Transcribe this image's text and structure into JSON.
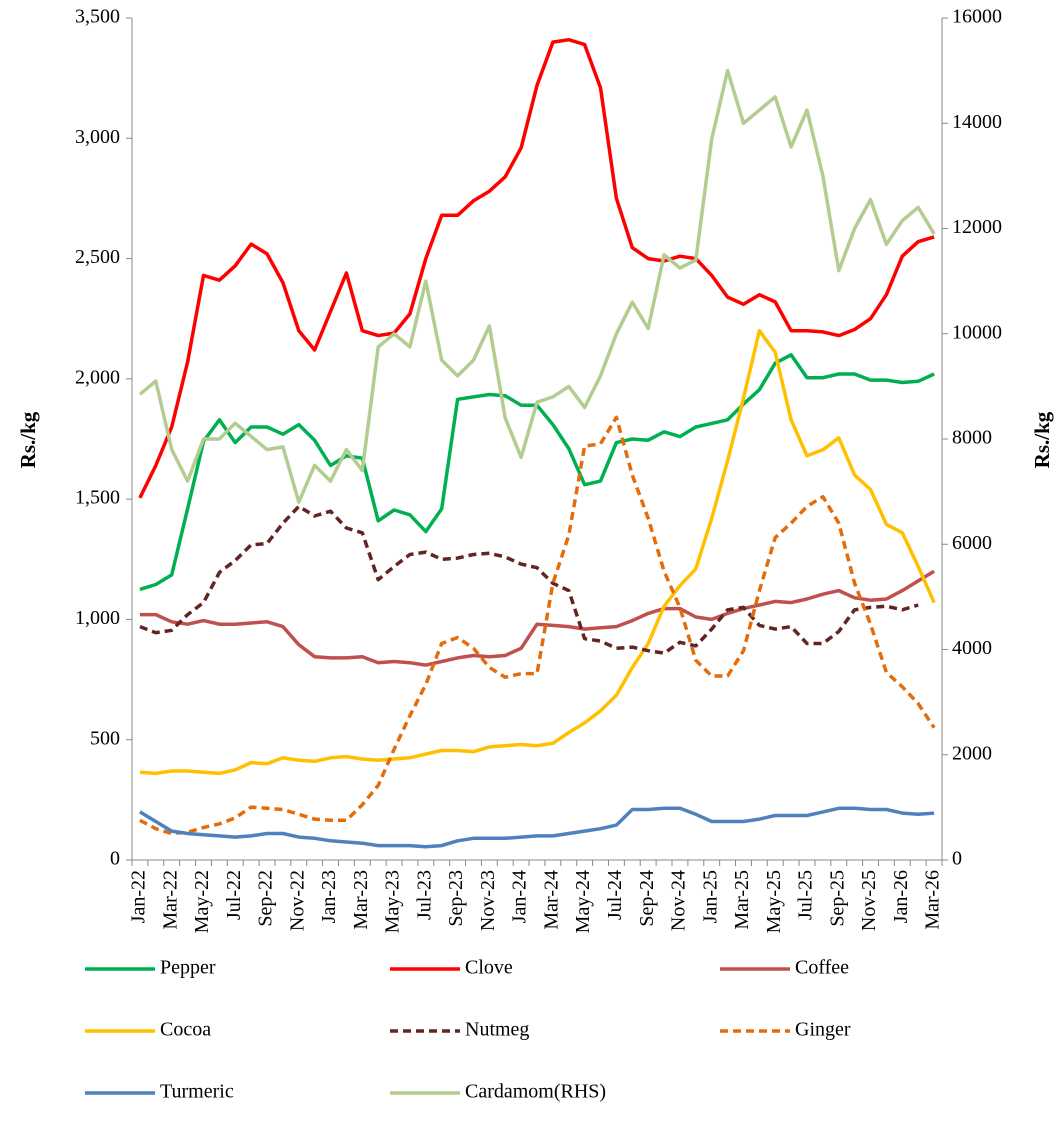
{
  "chart_data": {
    "type": "line",
    "y_label": "Rs./kg",
    "y2_label": "Rs./kg",
    "categories": [
      "Jan-22",
      null,
      "Mar-22",
      null,
      "May-22",
      null,
      "Jul-22",
      null,
      "Sep-22",
      null,
      "Nov-22",
      null,
      "Jan-23",
      null,
      "Mar-23",
      null,
      "May-23",
      null,
      "Jul-23",
      null,
      "Sep-23",
      null,
      "Nov-23",
      null,
      "Jan-24",
      null,
      "Mar-24",
      null,
      "May-24",
      null,
      "Jul-24",
      null,
      "Sep-24",
      null,
      "Nov-24",
      null,
      "Jan-25",
      null,
      "Mar-25",
      null,
      "May-25",
      null,
      "Jul-25",
      null,
      "Sep-25",
      null,
      "Nov-25",
      null,
      "Jan-26",
      null,
      "Mar-26"
    ],
    "ylim": [
      0,
      3500
    ],
    "yticks": [
      0,
      500,
      {
        "value": 1000,
        "label": "1,000"
      },
      {
        "value": 1500,
        "label": "1,500"
      },
      {
        "value": 2000,
        "label": "2,000"
      },
      {
        "value": 2500,
        "label": "2,500"
      },
      {
        "value": 3000,
        "label": "3,000"
      },
      {
        "value": 3500,
        "label": "3,500"
      }
    ],
    "y2lim": [
      0,
      16000
    ],
    "y2ticks": [
      0,
      2000,
      4000,
      6000,
      8000,
      10000,
      12000,
      14000,
      16000
    ],
    "series": [
      {
        "name": "Pepper",
        "color": "#00b050",
        "values": [
          1125,
          1145,
          1185,
          1460,
          1740,
          1830,
          1735,
          1800,
          1800,
          1770,
          1810,
          1745,
          1640,
          1680,
          1670,
          1410,
          1455,
          1435,
          1365,
          1460,
          1915,
          1925,
          1935,
          1930,
          1890,
          1890,
          1810,
          1710,
          1560,
          1575,
          1735,
          1750,
          1745,
          1780,
          1760,
          1800,
          1815,
          1830,
          1895,
          1955,
          2065,
          2100,
          2005,
          2005,
          2020,
          2020,
          1995,
          1995,
          1985,
          1990,
          2020
        ]
      },
      {
        "name": "Clove",
        "color": "#ff0000",
        "values": [
          1505,
          1640,
          1800,
          2070,
          2430,
          2410,
          2470,
          2560,
          2520,
          2400,
          2200,
          2120,
          2280,
          2440,
          2200,
          2180,
          2190,
          2270,
          2500,
          2680,
          2680,
          2740,
          2780,
          2840,
          2960,
          3220,
          3400,
          3410,
          3390,
          3210,
          2750,
          2545,
          2500,
          2490,
          2510,
          2500,
          2430,
          2340,
          2310,
          2350,
          2320,
          2200,
          2200,
          2195,
          2180,
          2205,
          2250,
          2350,
          2510,
          2570,
          2590
        ]
      },
      {
        "name": "Coffee",
        "color": "#c0504d",
        "values": [
          1020,
          1020,
          990,
          980,
          995,
          980,
          980,
          985,
          990,
          970,
          895,
          845,
          840,
          840,
          845,
          820,
          825,
          820,
          810,
          825,
          840,
          850,
          845,
          850,
          880,
          980,
          975,
          970,
          960,
          965,
          970,
          995,
          1025,
          1045,
          1045,
          1010,
          1000,
          1025,
          1045,
          1060,
          1075,
          1070,
          1085,
          1105,
          1120,
          1090,
          1080,
          1085,
          1120,
          1160,
          1200
        ]
      },
      {
        "name": "Cocoa",
        "color": "#ffc000",
        "values": [
          365,
          360,
          370,
          370,
          365,
          360,
          375,
          405,
          400,
          425,
          415,
          410,
          425,
          430,
          420,
          415,
          420,
          425,
          440,
          455,
          455,
          450,
          470,
          475,
          480,
          475,
          485,
          530,
          570,
          620,
          685,
          800,
          900,
          1055,
          1140,
          1210,
          1420,
          1660,
          1920,
          2200,
          2110,
          1830,
          1680,
          1705,
          1755,
          1600,
          1540,
          1395,
          1360,
          1220,
          1070
        ]
      },
      {
        "name": "Nutmeg",
        "color": "#632523",
        "dash": true,
        "values": [
          970,
          945,
          955,
          1020,
          1070,
          1195,
          1245,
          1310,
          1315,
          1400,
          1470,
          1430,
          1450,
          1380,
          1360,
          1165,
          1220,
          1270,
          1280,
          1250,
          1255,
          1270,
          1275,
          1260,
          1230,
          1215,
          1150,
          1120,
          920,
          910,
          880,
          885,
          870,
          860,
          905,
          890,
          960,
          1040,
          1050,
          975,
          960,
          970,
          900,
          900,
          950,
          1040,
          1050,
          1055,
          1040,
          1060,
          null
        ]
      },
      {
        "name": "Ginger",
        "color": "#e46c0a",
        "dash": true,
        "values": [
          165,
          130,
          110,
          115,
          135,
          150,
          175,
          220,
          215,
          210,
          190,
          170,
          165,
          165,
          230,
          310,
          460,
          600,
          730,
          900,
          925,
          880,
          800,
          760,
          775,
          775,
          1150,
          1350,
          1720,
          1730,
          1840,
          1600,
          1420,
          1200,
          1050,
          830,
          765,
          765,
          870,
          1120,
          1340,
          1400,
          1470,
          1510,
          1400,
          1150,
          980,
          780,
          720,
          650,
          550
        ]
      },
      {
        "name": "Turmeric",
        "color": "#4f81bd",
        "values": [
          200,
          160,
          120,
          110,
          105,
          100,
          95,
          100,
          110,
          110,
          95,
          90,
          80,
          75,
          70,
          60,
          60,
          60,
          55,
          60,
          80,
          90,
          90,
          90,
          95,
          100,
          100,
          110,
          120,
          130,
          145,
          210,
          210,
          215,
          215,
          190,
          160,
          160,
          160,
          170,
          185,
          185,
          185,
          200,
          215,
          215,
          210,
          210,
          195,
          190,
          195
        ]
      },
      {
        "name": "Cardamom(RHS)",
        "color": "#b3cc8f",
        "axis": "y2",
        "values": [
          8850,
          9100,
          7800,
          7200,
          8000,
          8000,
          8300,
          8050,
          7800,
          7850,
          6800,
          7500,
          7200,
          7800,
          7400,
          9750,
          10000,
          9750,
          11000,
          9500,
          9200,
          9500,
          10150,
          8400,
          7650,
          8700,
          8800,
          9000,
          8600,
          9200,
          10000,
          10600,
          10100,
          11500,
          11250,
          11400,
          13700,
          15000,
          14000,
          14250,
          14500,
          13550,
          14250,
          13000,
          11200,
          12000,
          12550,
          11700,
          12150,
          12400,
          11900
        ]
      }
    ]
  }
}
